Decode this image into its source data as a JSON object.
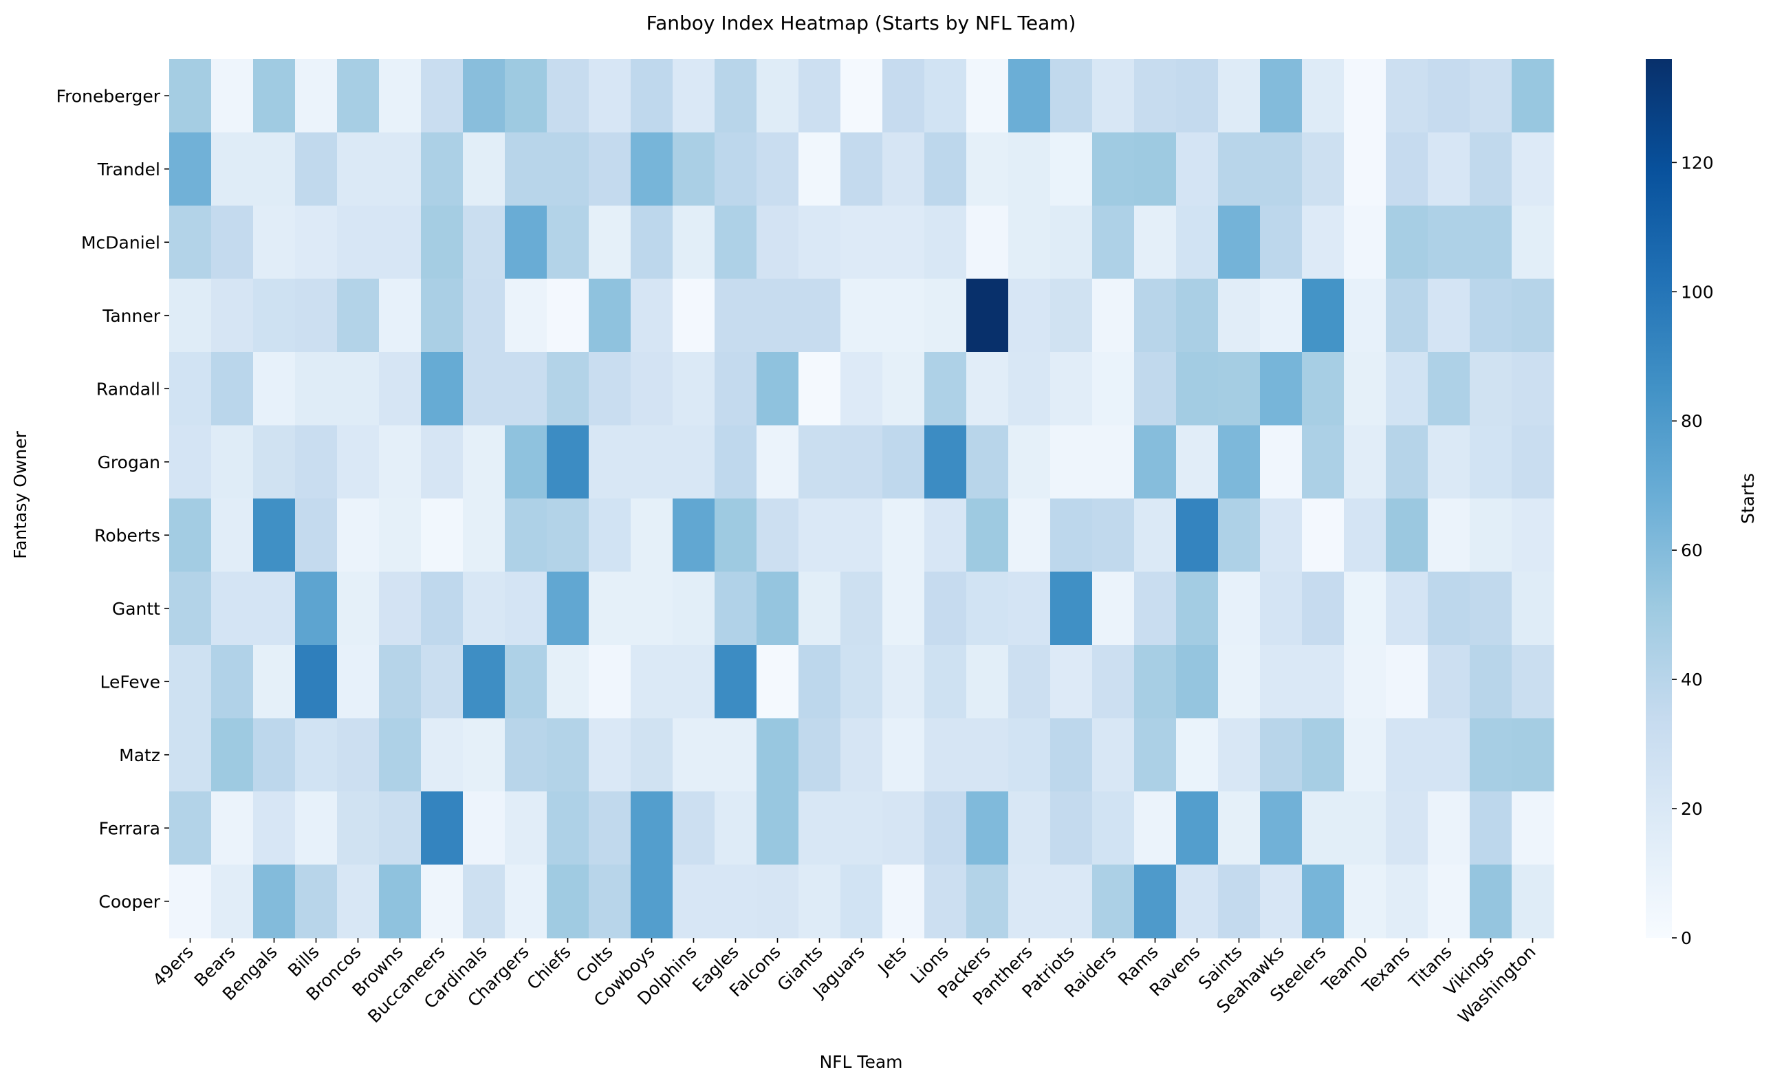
{
  "chart_data": {
    "type": "heatmap",
    "title": "Fanboy Index Heatmap (Starts by NFL Team)",
    "xlabel": "NFL Team",
    "ylabel": "Fantasy Owner",
    "colorbar": {
      "label": "Starts",
      "range": [
        0,
        136
      ],
      "ticks": [
        0,
        20,
        40,
        60,
        80,
        100,
        120
      ],
      "colormap": "Blues"
    },
    "x_categories": [
      "49ers",
      "Bears",
      "Bengals",
      "Bills",
      "Broncos",
      "Browns",
      "Buccaneers",
      "Cardinals",
      "Chargers",
      "Chiefs",
      "Colts",
      "Cowboys",
      "Dolphins",
      "Eagles",
      "Falcons",
      "Giants",
      "Jaguars",
      "Jets",
      "Lions",
      "Packers",
      "Panthers",
      "Patriots",
      "Raiders",
      "Rams",
      "Ravens",
      "Saints",
      "Seahawks",
      "Steelers",
      "Team0",
      "Texans",
      "Titans",
      "Vikings",
      "Washington"
    ],
    "y_categories": [
      "Froneberger",
      "Trandel",
      "McDaniel",
      "Tanner",
      "Randall",
      "Grogan",
      "Roberts",
      "Gantt",
      "LeFeve",
      "Matz",
      "Ferrara",
      "Cooper"
    ],
    "values": [
      [
        48,
        6,
        50,
        8,
        47,
        10,
        32,
        58,
        51,
        33,
        22,
        37,
        20,
        40,
        16,
        30,
        2,
        34,
        26,
        4,
        68,
        36,
        21,
        33,
        35,
        17,
        60,
        17,
        3,
        30,
        34,
        30,
        53
      ],
      [
        66,
        16,
        16,
        36,
        19,
        19,
        45,
        14,
        40,
        40,
        35,
        64,
        46,
        38,
        32,
        4,
        35,
        23,
        38,
        12,
        14,
        9,
        50,
        51,
        24,
        40,
        40,
        29,
        3,
        34,
        22,
        36,
        18
      ],
      [
        42,
        35,
        15,
        18,
        22,
        22,
        48,
        31,
        69,
        42,
        12,
        38,
        14,
        44,
        25,
        20,
        18,
        18,
        21,
        5,
        14,
        16,
        44,
        13,
        26,
        65,
        38,
        18,
        5,
        47,
        44,
        44,
        14
      ],
      [
        16,
        23,
        28,
        30,
        42,
        11,
        46,
        32,
        8,
        3,
        56,
        23,
        3,
        33,
        33,
        33,
        10,
        10,
        12,
        136,
        22,
        27,
        6,
        40,
        46,
        15,
        11,
        84,
        11,
        40,
        24,
        39,
        41
      ],
      [
        26,
        39,
        11,
        16,
        16,
        23,
        70,
        32,
        32,
        42,
        32,
        25,
        19,
        35,
        56,
        2,
        18,
        12,
        44,
        15,
        21,
        15,
        9,
        36,
        49,
        48,
        64,
        47,
        12,
        26,
        44,
        27,
        30
      ],
      [
        24,
        16,
        27,
        32,
        20,
        13,
        23,
        12,
        56,
        88,
        21,
        21,
        21,
        37,
        8,
        31,
        32,
        37,
        88,
        40,
        12,
        6,
        6,
        59,
        15,
        62,
        5,
        45,
        15,
        41,
        19,
        26,
        32
      ],
      [
        49,
        15,
        86,
        35,
        8,
        12,
        4,
        12,
        44,
        42,
        26,
        12,
        72,
        51,
        30,
        20,
        20,
        10,
        22,
        51,
        8,
        38,
        36,
        19,
        92,
        44,
        22,
        3,
        24,
        52,
        8,
        14,
        18
      ],
      [
        42,
        24,
        24,
        74,
        12,
        25,
        37,
        21,
        24,
        72,
        12,
        12,
        14,
        43,
        54,
        14,
        29,
        10,
        34,
        26,
        24,
        86,
        8,
        32,
        49,
        11,
        24,
        34,
        9,
        24,
        38,
        36,
        16
      ],
      [
        28,
        43,
        12,
        95,
        11,
        41,
        31,
        87,
        44,
        12,
        5,
        19,
        19,
        88,
        2,
        38,
        28,
        15,
        28,
        14,
        30,
        18,
        30,
        47,
        54,
        10,
        20,
        20,
        8,
        5,
        30,
        40,
        31
      ],
      [
        28,
        51,
        38,
        26,
        30,
        44,
        15,
        12,
        40,
        42,
        20,
        27,
        13,
        13,
        53,
        36,
        23,
        11,
        23,
        23,
        26,
        38,
        21,
        45,
        9,
        21,
        40,
        47,
        10,
        24,
        24,
        47,
        48
      ],
      [
        42,
        8,
        22,
        11,
        27,
        31,
        92,
        7,
        15,
        44,
        36,
        78,
        30,
        17,
        53,
        21,
        21,
        23,
        34,
        61,
        21,
        35,
        26,
        8,
        78,
        12,
        66,
        14,
        14,
        23,
        8,
        38,
        6
      ],
      [
        5,
        15,
        60,
        40,
        21,
        56,
        6,
        29,
        11,
        50,
        40,
        78,
        22,
        22,
        23,
        17,
        26,
        5,
        30,
        42,
        20,
        20,
        45,
        80,
        24,
        35,
        22,
        64,
        10,
        15,
        6,
        54,
        16
      ]
    ]
  }
}
